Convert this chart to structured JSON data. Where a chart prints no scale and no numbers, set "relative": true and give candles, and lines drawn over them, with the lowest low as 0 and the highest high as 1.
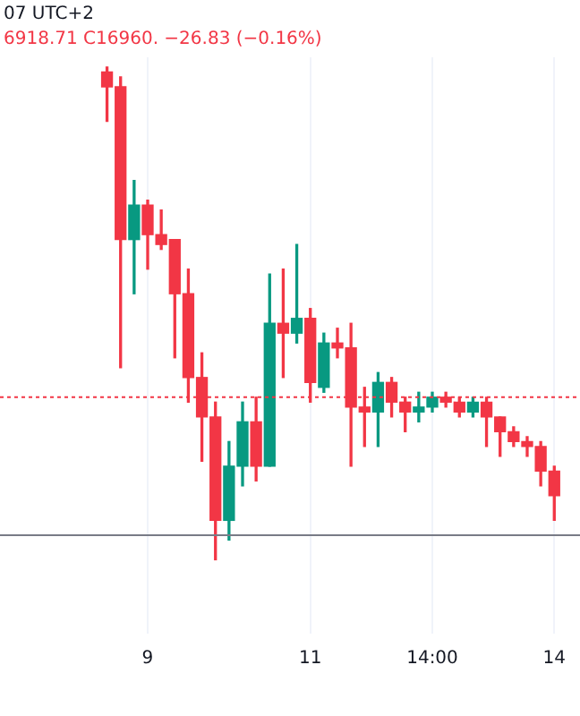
{
  "chart_data": {
    "type": "candlestick",
    "relative": true,
    "annotations": [
      "07 UTC+2",
      "6918.71 C16960. −26.83 (−0.16%)"
    ],
    "categories": [
      null,
      null,
      null,
      "9",
      null,
      null,
      null,
      null,
      null,
      null,
      null,
      null,
      null,
      null,
      null,
      "11",
      null,
      null,
      null,
      null,
      null,
      null,
      null,
      null,
      "14:00",
      null,
      null,
      null,
      null,
      null,
      null,
      null,
      null,
      "14"
    ],
    "series": [
      {
        "colors": [
          "#f23645",
          "#f23645",
          "#089981",
          "#f23645",
          "#f23645",
          "#f23645",
          "#f23645",
          "#f23645",
          "#f23645",
          "#089981",
          "#089981",
          "#f23645",
          "#089981",
          "#f23645",
          "#089981",
          "#f23645",
          "#089981",
          "#f23645",
          "#f23645",
          "#f23645",
          "#089981",
          "#f23645",
          "#f23645",
          "#089981",
          "#089981",
          "#f23645",
          "#f23645",
          "#089981",
          "#f23645",
          "#f23645",
          "#f23645",
          "#f23645",
          "#f23645",
          "#f23645"
        ],
        "ohlc": [
          [
            0.99,
            1.0,
            0.89,
            0.96
          ],
          [
            0.96,
            0.98,
            0.39,
            0.65
          ],
          [
            0.65,
            0.77,
            0.54,
            0.72
          ],
          [
            0.72,
            0.73,
            0.59,
            0.66
          ],
          [
            0.66,
            0.71,
            0.63,
            0.64
          ],
          [
            0.65,
            0.65,
            0.41,
            0.54
          ],
          [
            0.54,
            0.59,
            0.32,
            0.37
          ],
          [
            0.37,
            0.42,
            0.2,
            0.29
          ],
          [
            0.29,
            0.32,
            0,
            0.08
          ],
          [
            0.08,
            0.24,
            0.04,
            0.19
          ],
          [
            0.19,
            0.32,
            0.15,
            0.28
          ],
          [
            0.28,
            0.33,
            0.16,
            0.19
          ],
          [
            0.19,
            0.58,
            0.19,
            0.48
          ],
          [
            0.48,
            0.59,
            0.37,
            0.46
          ],
          [
            0.46,
            0.64,
            0.44,
            0.49
          ],
          [
            0.49,
            0.51,
            0.32,
            0.36
          ],
          [
            0.35,
            0.46,
            0.34,
            0.44
          ],
          [
            0.44,
            0.47,
            0.41,
            0.43
          ],
          [
            0.43,
            0.48,
            0.19,
            0.31
          ],
          [
            0.31,
            0.35,
            0.23,
            0.3
          ],
          [
            0.3,
            0.38,
            0.23,
            0.36
          ],
          [
            0.36,
            0.37,
            0.29,
            0.32
          ],
          [
            0.32,
            0.33,
            0.26,
            0.3
          ],
          [
            0.3,
            0.34,
            0.28,
            0.31
          ],
          [
            0.31,
            0.34,
            0.3,
            0.33
          ],
          [
            0.33,
            0.34,
            0.31,
            0.32
          ],
          [
            0.32,
            0.33,
            0.29,
            0.3
          ],
          [
            0.3,
            0.33,
            0.29,
            0.32
          ],
          [
            0.32,
            0.33,
            0.23,
            0.29
          ],
          [
            0.29,
            0.29,
            0.21,
            0.26
          ],
          [
            0.26,
            0.27,
            0.23,
            0.24
          ],
          [
            0.24,
            0.25,
            0.21,
            0.23
          ],
          [
            0.23,
            0.24,
            0.15,
            0.18
          ],
          [
            0.18,
            0.19,
            0.08,
            0.13
          ]
        ]
      }
    ],
    "ref_lines": [
      {
        "axis": "y",
        "value": 0.05,
        "color": "#787b86",
        "line_style": "solid"
      },
      {
        "axis": "y",
        "value": 0.33,
        "color": "#f23645",
        "line_style": "dotted"
      }
    ],
    "grid": "x",
    "legend": false
  }
}
